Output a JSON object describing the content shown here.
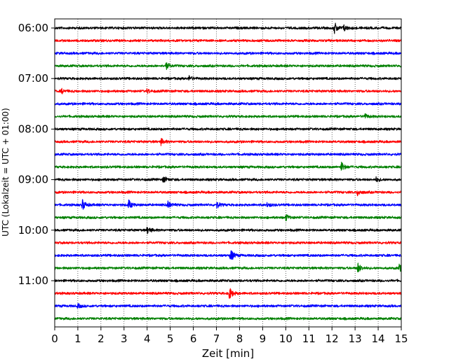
{
  "chart_data": {
    "type": "line",
    "title": "",
    "xlabel": "Zeit  [min]",
    "ylabel": "UTC (Lokalzeit = UTC + 01:00)",
    "xlim": [
      0,
      15
    ],
    "x_ticks": [
      "0",
      "1",
      "2",
      "3",
      "4",
      "5",
      "6",
      "7",
      "8",
      "9",
      "10",
      "11",
      "12",
      "13",
      "14",
      "15"
    ],
    "y_ticks": [
      "06:00",
      "07:00",
      "08:00",
      "09:00",
      "10:00",
      "11:00"
    ],
    "grid": "vertical dotted at each minute",
    "legend": "none",
    "trace_interval_min": 15,
    "trace_colors": [
      "#000000",
      "#ff0000",
      "#0000ff",
      "#008000"
    ],
    "traces": [
      {
        "start": "06:00",
        "color": "#000000",
        "events": [
          {
            "t": 12.1,
            "a": 0.9
          },
          {
            "t": 12.5,
            "a": 0.5
          }
        ]
      },
      {
        "start": "06:15",
        "color": "#ff0000",
        "events": []
      },
      {
        "start": "06:30",
        "color": "#0000ff",
        "events": []
      },
      {
        "start": "06:45",
        "color": "#008000",
        "events": [
          {
            "t": 4.8,
            "a": 0.6
          }
        ]
      },
      {
        "start": "07:00",
        "color": "#000000",
        "events": [
          {
            "t": 5.8,
            "a": 0.4
          }
        ]
      },
      {
        "start": "07:15",
        "color": "#ff0000",
        "events": [
          {
            "t": 0.3,
            "a": 0.35
          },
          {
            "t": 4.0,
            "a": 0.3
          }
        ]
      },
      {
        "start": "07:30",
        "color": "#0000ff",
        "events": []
      },
      {
        "start": "07:45",
        "color": "#008000",
        "events": [
          {
            "t": 13.4,
            "a": 0.4
          }
        ]
      },
      {
        "start": "08:00",
        "color": "#000000",
        "events": []
      },
      {
        "start": "08:15",
        "color": "#ff0000",
        "events": [
          {
            "t": 4.6,
            "a": 0.45
          }
        ]
      },
      {
        "start": "08:30",
        "color": "#0000ff",
        "events": []
      },
      {
        "start": "08:45",
        "color": "#008000",
        "events": [
          {
            "t": 12.4,
            "a": 0.75
          }
        ]
      },
      {
        "start": "09:00",
        "color": "#000000",
        "events": [
          {
            "t": 4.7,
            "a": 0.5
          },
          {
            "t": 13.9,
            "a": 0.35
          }
        ]
      },
      {
        "start": "09:15",
        "color": "#ff0000",
        "events": [
          {
            "t": 13.1,
            "a": 0.5
          }
        ]
      },
      {
        "start": "09:30",
        "color": "#0000ff",
        "events": [
          {
            "t": 1.2,
            "a": 0.8
          },
          {
            "t": 3.2,
            "a": 0.7
          },
          {
            "t": 4.9,
            "a": 0.5
          },
          {
            "t": 7.0,
            "a": 0.5
          },
          {
            "t": 9.2,
            "a": 0.35
          }
        ]
      },
      {
        "start": "09:45",
        "color": "#008000",
        "events": [
          {
            "t": 10.0,
            "a": 0.45
          }
        ]
      },
      {
        "start": "10:00",
        "color": "#000000",
        "events": [
          {
            "t": 4.0,
            "a": 0.55
          }
        ]
      },
      {
        "start": "10:15",
        "color": "#ff0000",
        "events": []
      },
      {
        "start": "10:30",
        "color": "#0000ff",
        "events": [
          {
            "t": 7.6,
            "a": 1.0
          }
        ]
      },
      {
        "start": "10:45",
        "color": "#008000",
        "events": [
          {
            "t": 13.1,
            "a": 0.9
          },
          {
            "t": 14.9,
            "a": 0.6
          }
        ]
      },
      {
        "start": "11:00",
        "color": "#000000",
        "events": []
      },
      {
        "start": "11:15",
        "color": "#ff0000",
        "events": [
          {
            "t": 7.55,
            "a": 1.0
          }
        ]
      },
      {
        "start": "11:30",
        "color": "#0000ff",
        "events": [
          {
            "t": 1.0,
            "a": 0.3
          }
        ]
      },
      {
        "start": "11:45",
        "color": "#008000",
        "events": []
      }
    ]
  }
}
